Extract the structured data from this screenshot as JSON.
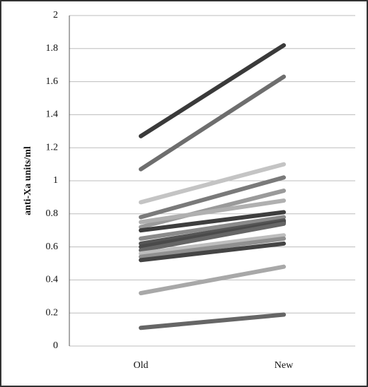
{
  "chart_data": {
    "type": "line",
    "y_label": "anti-Xa units/ml",
    "categories": [
      "Old",
      "New"
    ],
    "series": [
      {
        "color": "#3a3a3a",
        "values": [
          1.27,
          1.82
        ]
      },
      {
        "color": "#6e6e6e",
        "values": [
          1.07,
          1.63
        ]
      },
      {
        "color": "#c4c4c4",
        "values": [
          0.87,
          1.1
        ]
      },
      {
        "color": "#7a7a7a",
        "values": [
          0.78,
          1.02
        ]
      },
      {
        "color": "#9a9a9a",
        "values": [
          0.72,
          0.94
        ]
      },
      {
        "color": "#b0b0b0",
        "values": [
          0.75,
          0.88
        ]
      },
      {
        "color": "#3e3e3e",
        "values": [
          0.7,
          0.81
        ]
      },
      {
        "color": "#8a8a8a",
        "values": [
          0.65,
          0.78
        ]
      },
      {
        "color": "#555555",
        "values": [
          0.62,
          0.76
        ]
      },
      {
        "color": "#4a4a4a",
        "values": [
          0.6,
          0.75
        ]
      },
      {
        "color": "#666666",
        "values": [
          0.58,
          0.74
        ]
      },
      {
        "color": "#bdbdbd",
        "values": [
          0.56,
          0.67
        ]
      },
      {
        "color": "#909090",
        "values": [
          0.54,
          0.65
        ]
      },
      {
        "color": "#444444",
        "values": [
          0.52,
          0.62
        ]
      },
      {
        "color": "#a8a8a8",
        "values": [
          0.32,
          0.48
        ]
      },
      {
        "color": "#666666",
        "values": [
          0.11,
          0.19
        ]
      }
    ],
    "ylim": [
      0,
      2
    ],
    "yticks": [
      0,
      0.2,
      0.4,
      0.6,
      0.8,
      1,
      1.2,
      1.4,
      1.6,
      1.8,
      2
    ],
    "grid": true
  }
}
